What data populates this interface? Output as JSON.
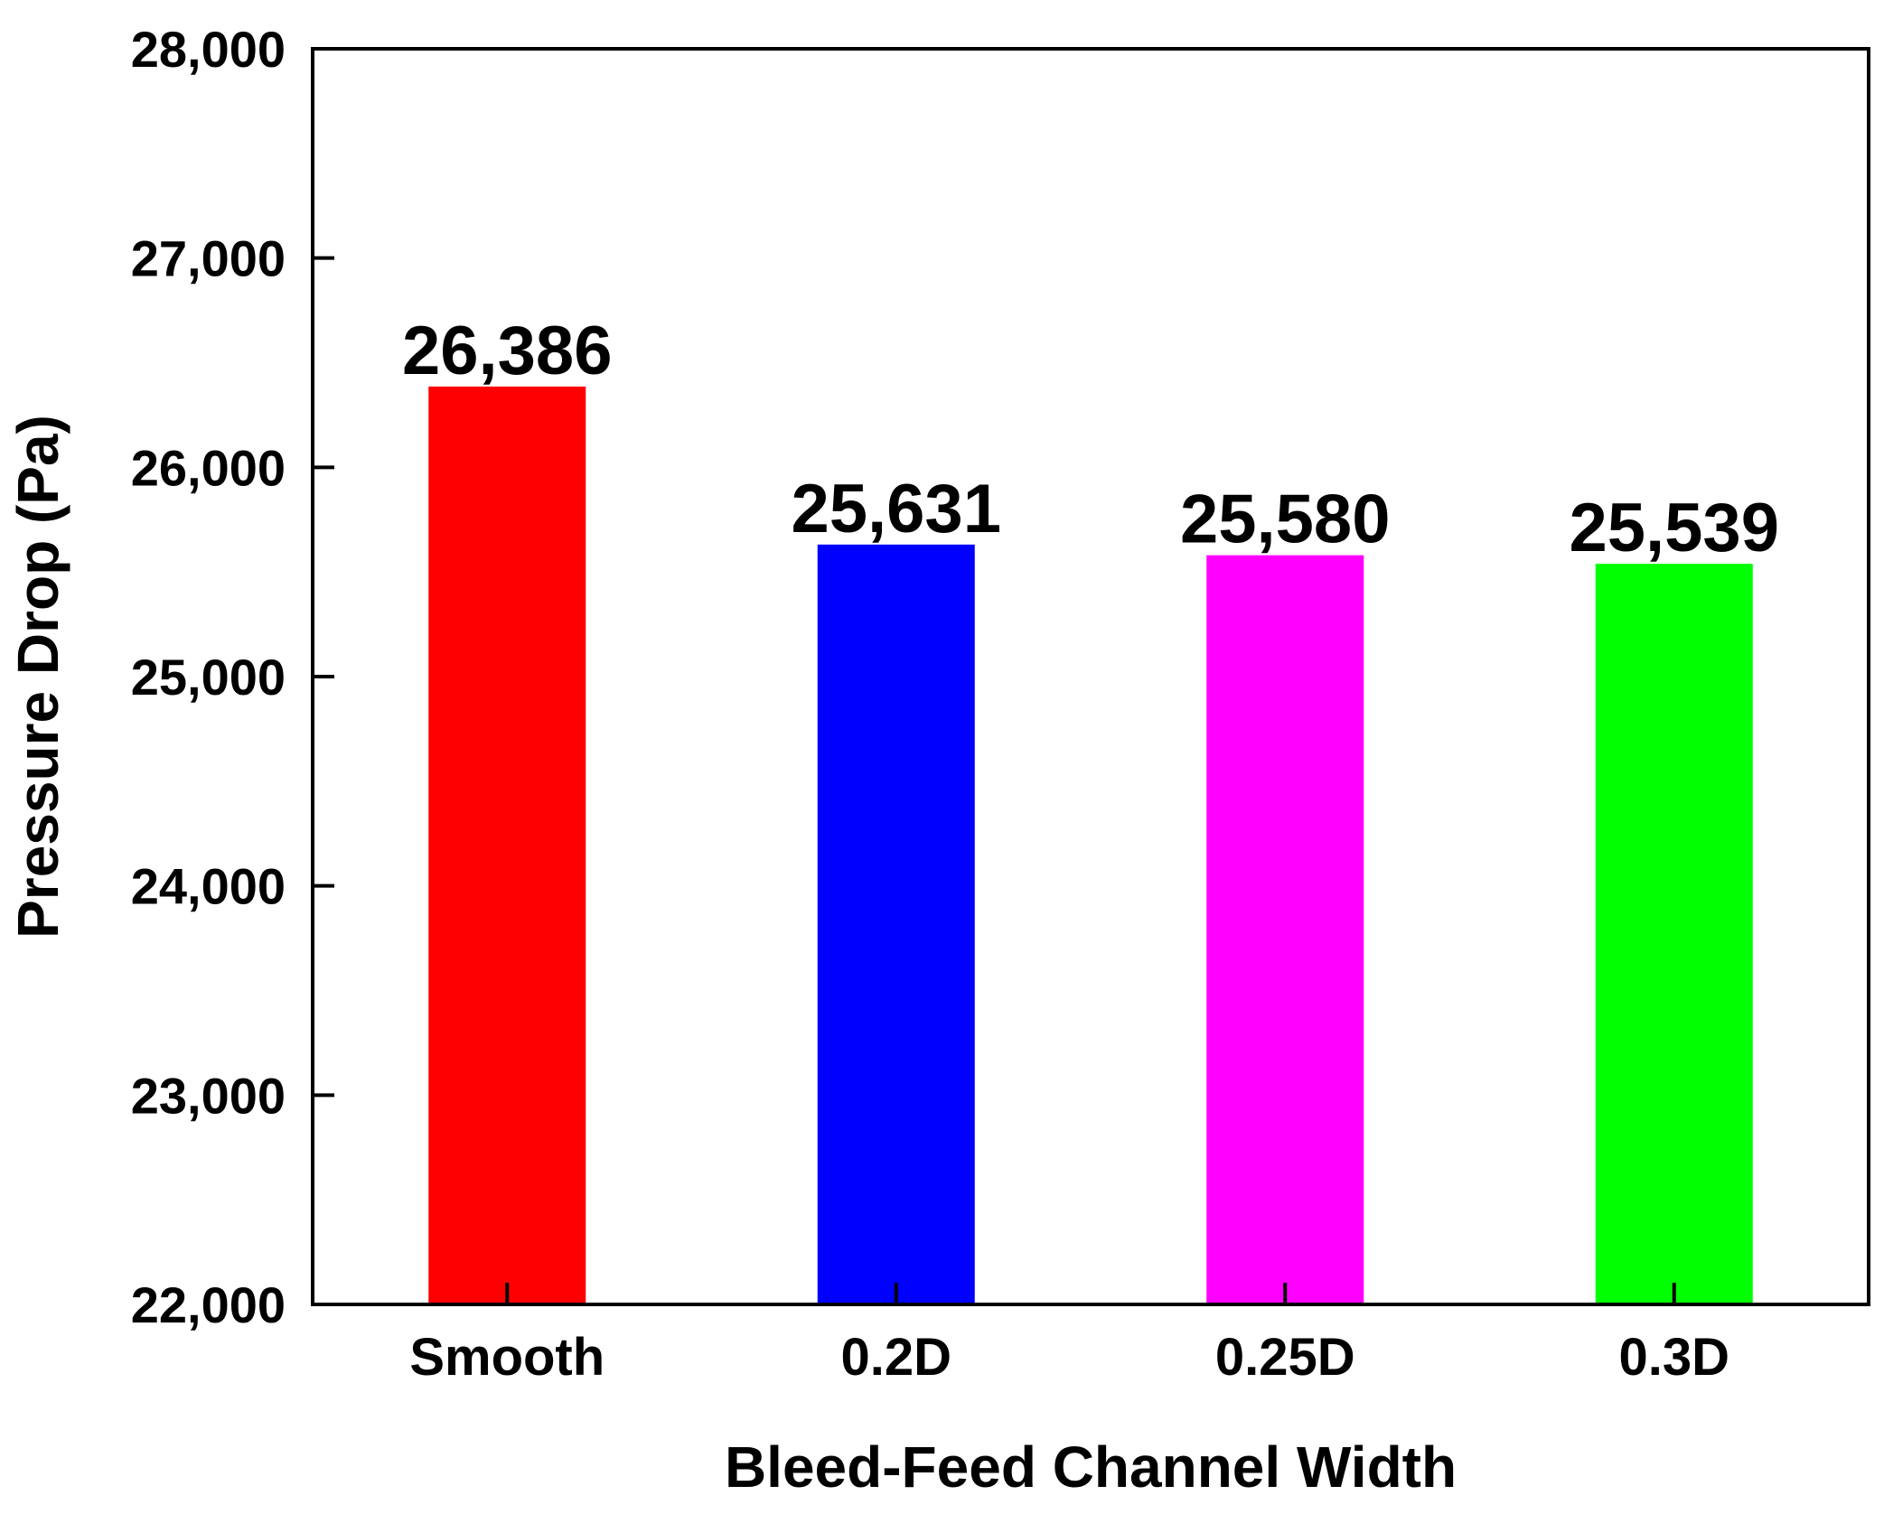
{
  "chart_data": {
    "type": "bar",
    "title": "",
    "xlabel": "Bleed-Feed Channel Width",
    "ylabel": "Pressure Drop (Pa)",
    "categories": [
      "Smooth",
      "0.2D",
      "0.25D",
      "0.3D"
    ],
    "values": [
      26386,
      25631,
      25580,
      25539
    ],
    "data_labels": [
      "26,386",
      "25,631",
      "25,580",
      "25,539"
    ],
    "colors": [
      "#ff0000",
      "#0000ff",
      "#ff00ff",
      "#00ff00"
    ],
    "ylim": [
      22000,
      28000
    ],
    "yticks": [
      22000,
      23000,
      24000,
      25000,
      26000,
      27000,
      28000
    ],
    "ytick_labels": [
      "22,000",
      "23,000",
      "24,000",
      "25,000",
      "26,000",
      "27,000",
      "28,000"
    ],
    "grid": false,
    "legend": "none"
  }
}
